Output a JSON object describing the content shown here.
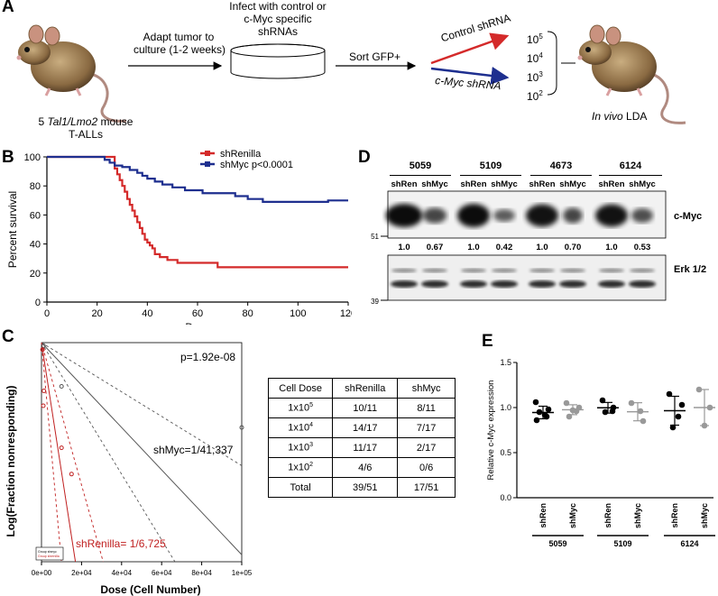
{
  "panel_a": {
    "label": "A",
    "mouse_caption": [
      "5 ",
      "Tal1/Lmo2",
      " mouse",
      "T-ALLs"
    ],
    "step1": [
      "Adapt tumor to",
      "culture (1-2 weeks)"
    ],
    "step2": [
      "Infect with control or",
      "c-Myc specific",
      "shRNAs"
    ],
    "step3": "Sort GFP+",
    "arrow_control": "Control shRNA",
    "arrow_myc": "c-Myc shRNA",
    "doses": [
      [
        "10",
        "5"
      ],
      [
        "10",
        "4"
      ],
      [
        "10",
        "3"
      ],
      [
        "10",
        "2"
      ]
    ],
    "lda_caption": [
      "In vivo",
      " LDA"
    ]
  },
  "panel_b": {
    "label": "B",
    "legend": [
      "shRenilla",
      "shMyc p<0.0001"
    ],
    "colors": {
      "renilla": "#d42a2a",
      "myc": "#1e2f8f"
    }
  },
  "chart_data": [
    {
      "type": "line",
      "panel": "B",
      "xlabel": "Days",
      "ylabel": "Percent survival",
      "xlim": [
        0,
        120
      ],
      "ylim": [
        0,
        100
      ],
      "xticks": [
        "0",
        "20",
        "40",
        "60",
        "80",
        "100",
        "120"
      ],
      "yticks": [
        "0",
        "20",
        "40",
        "60",
        "80",
        "100"
      ],
      "legend_position": "top-right",
      "series": [
        {
          "name": "shRenilla",
          "color": "#d42a2a",
          "x": [
            0,
            25,
            27,
            28,
            29,
            30,
            31,
            32,
            33,
            34,
            35,
            36,
            37,
            38,
            39,
            40,
            41,
            42,
            43,
            45,
            48,
            52,
            56,
            60,
            66,
            68,
            75,
            90,
            100,
            110,
            120
          ],
          "y": [
            100,
            100,
            92,
            88,
            84,
            80,
            76,
            71,
            67,
            63,
            59,
            55,
            51,
            47,
            43,
            41,
            39,
            37,
            33,
            31,
            29,
            27,
            27,
            27,
            27,
            24,
            24,
            24,
            24,
            24,
            24
          ]
        },
        {
          "name": "shMyc p<0.0001",
          "color": "#1e2f8f",
          "x": [
            0,
            20,
            23,
            25,
            27,
            30,
            33,
            36,
            38,
            40,
            43,
            46,
            50,
            55,
            62,
            70,
            75,
            80,
            86,
            95,
            100,
            110,
            112,
            120
          ],
          "y": [
            100,
            100,
            98,
            96,
            94,
            93,
            91,
            89,
            87,
            85,
            83,
            81,
            79,
            77,
            75,
            75,
            73,
            71,
            69,
            69,
            69,
            69,
            70,
            70
          ]
        }
      ]
    },
    {
      "type": "line",
      "panel": "C",
      "xlabel": "Dose (Cell Number)",
      "ylabel": "Log(Fraction nonresponding)",
      "xticks": [
        "0e+00",
        "2e+04",
        "4e+04",
        "6e+04",
        "8e+04",
        "1e+05"
      ],
      "p_value": "p=1.92e-08",
      "annotations": [
        {
          "text": "shMyc=1/41,337",
          "color": "#000000"
        },
        {
          "text": "shRenilla= 1/6,725",
          "color": "#c02020"
        }
      ],
      "legend": [
        "Group shmyc",
        "Group shrenilla"
      ],
      "xlim": [
        0,
        100000
      ],
      "series": [
        {
          "name": "shMyc",
          "color": "#000000",
          "x": [
            0,
            100000
          ],
          "y": [
            0,
            -2.42
          ]
        },
        {
          "name": "shRenilla",
          "color": "#c02020",
          "x": [
            0,
            21000
          ],
          "y": [
            0,
            -3.1
          ]
        }
      ]
    },
    {
      "type": "scatter",
      "panel": "E",
      "ylabel": "Relative c-Myc expression",
      "ylim": [
        0,
        1.5
      ],
      "yticks": [
        "0.0",
        "0.5",
        "1.0",
        "1.5"
      ],
      "groups": [
        {
          "label": "shRen",
          "sample": "5059",
          "color": "#000000",
          "values": [
            1.06,
            0.98,
            0.95,
            0.9,
            0.86,
            0.92
          ]
        },
        {
          "label": "shMyc",
          "sample": "5059",
          "color": "#999999",
          "values": [
            1.05,
            1.0,
            0.97,
            0.9,
            0.96
          ]
        },
        {
          "label": "shRen",
          "sample": "5109",
          "color": "#000000",
          "values": [
            1.08,
            1.0,
            0.95,
            0.96
          ]
        },
        {
          "label": "shMyc",
          "sample": "5109",
          "color": "#999999",
          "values": [
            1.05,
            0.85,
            0.96
          ]
        },
        {
          "label": "shRen",
          "sample": "6124",
          "color": "#000000",
          "values": [
            1.15,
            1.03,
            0.78,
            0.9
          ]
        },
        {
          "label": "shMyc",
          "sample": "6124",
          "color": "#999999",
          "values": [
            1.2,
            1.0,
            0.8
          ]
        }
      ],
      "sample_labels": [
        "5059",
        "5109",
        "6124"
      ]
    }
  ],
  "panel_c": {
    "label": "C",
    "table": {
      "header": [
        "Cell Dose",
        "shRenilla",
        "shMyc"
      ],
      "rows": [
        [
          [
            "1x10",
            "5"
          ],
          "10/11",
          "8/11"
        ],
        [
          [
            "1x10",
            "4"
          ],
          "14/17",
          "7/17"
        ],
        [
          [
            "1x10",
            "3"
          ],
          "11/17",
          "2/17"
        ],
        [
          [
            "1x10",
            "2"
          ],
          "4/6",
          "0/6"
        ],
        [
          [
            "Total",
            ""
          ],
          "39/51",
          "17/51"
        ]
      ]
    }
  },
  "panel_d": {
    "label": "D",
    "samples": [
      "5059",
      "5109",
      "4673",
      "6124"
    ],
    "lanes": [
      "shRen",
      "shMyc",
      "shRen",
      "shMyc",
      "shRen",
      "shMyc",
      "shRen",
      "shMyc"
    ],
    "quant": [
      "1.0",
      "0.67",
      "1.0",
      "0.42",
      "1.0",
      "0.70",
      "1.0",
      "0.53"
    ],
    "blot1_label": "c-Myc",
    "blot2_label": "Erk 1/2",
    "mw1": "51",
    "mw2": "39"
  },
  "panel_e": {
    "label": "E"
  }
}
